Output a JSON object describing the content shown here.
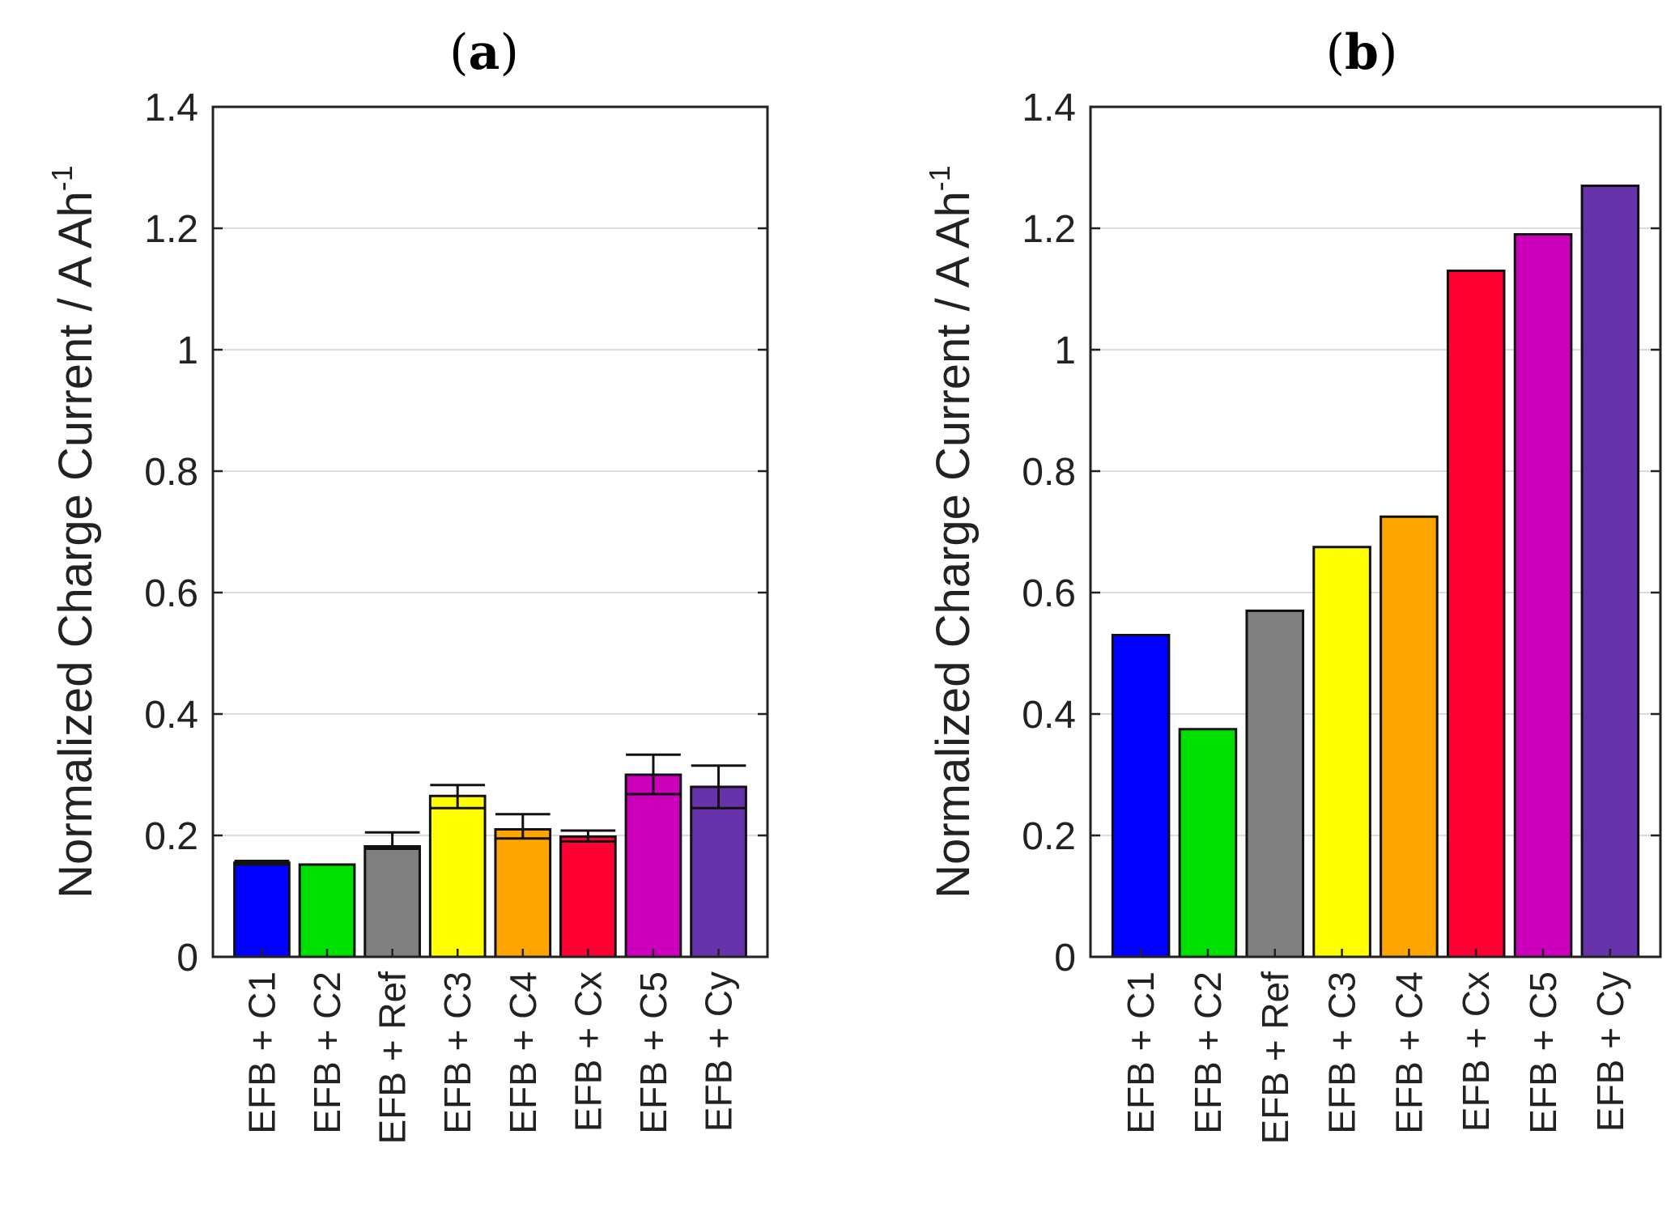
{
  "chart_data": [
    {
      "type": "bar",
      "panel": "a",
      "title": "a",
      "ylabel": "Normalized Charge Current / A Ah",
      "ylabel_superscript": "-1",
      "ylim": [
        0,
        1.4
      ],
      "yticks": [
        "0",
        "0.2",
        "0.4",
        "0.6",
        "0.8",
        "1",
        "1.2",
        "1.4"
      ],
      "categories": [
        "EFB + C1",
        "EFB + C2",
        "EFB + Ref",
        "EFB + C3",
        "EFB + C4",
        "EFB + Cx",
        "EFB + C5",
        "EFB + Cy"
      ],
      "values": [
        0.155,
        0.152,
        0.182,
        0.265,
        0.21,
        0.198,
        0.3,
        0.28
      ],
      "error_low": [
        0.152,
        0.152,
        0.178,
        0.245,
        0.195,
        0.19,
        0.268,
        0.245
      ],
      "error_high": [
        0.158,
        0.152,
        0.205,
        0.283,
        0.235,
        0.208,
        0.333,
        0.315
      ],
      "colors": [
        "#0000ff",
        "#00e000",
        "#808080",
        "#ffff00",
        "#ffa500",
        "#ff0033",
        "#cc00bb",
        "#6633aa"
      ]
    },
    {
      "type": "bar",
      "panel": "b",
      "title": "b",
      "ylabel": "Normalized Charge Current / A Ah",
      "ylabel_superscript": "-1",
      "ylim": [
        0,
        1.4
      ],
      "yticks": [
        "0",
        "0.2",
        "0.4",
        "0.6",
        "0.8",
        "1",
        "1.2",
        "1.4"
      ],
      "categories": [
        "EFB + C1",
        "EFB + C2",
        "EFB + Ref",
        "EFB + C3",
        "EFB + C4",
        "EFB + Cx",
        "EFB + C5",
        "EFB + Cy"
      ],
      "values": [
        0.53,
        0.375,
        0.57,
        0.675,
        0.725,
        1.13,
        1.19,
        1.27
      ],
      "colors": [
        "#0000ff",
        "#00e000",
        "#808080",
        "#ffff00",
        "#ffa500",
        "#ff0033",
        "#cc00bb",
        "#6633aa"
      ]
    }
  ]
}
